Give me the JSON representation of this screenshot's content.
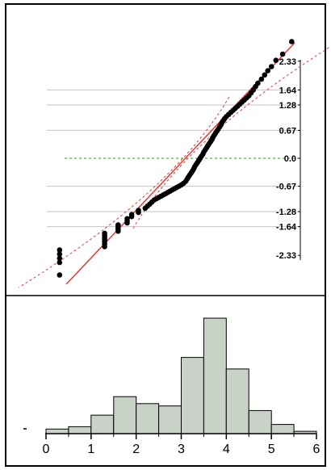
{
  "chart_data": [
    {
      "type": "scatter",
      "subtype": "normal-quantile-plot",
      "title": "",
      "xlabel": "",
      "ylabel": "",
      "right_axis_ticks": [
        2.33,
        1.64,
        1.28,
        0.67,
        0.0,
        -0.67,
        -1.28,
        -1.64,
        -2.33
      ],
      "right_axis_labels": [
        "2.33",
        "1.64",
        "1.28",
        "0.67",
        "0.0",
        "-0.67",
        "-1.28",
        "-1.64",
        "-2.33"
      ],
      "zero_line_color": "#2e9d2e",
      "fit_line_color": "#e53935",
      "confidence_band_color": "#e53935",
      "point_color": "#000000",
      "grid": true,
      "x": [
        0.3,
        0.3,
        0.3,
        0.3,
        0.3,
        1.3,
        1.3,
        1.3,
        1.3,
        1.3,
        1.3,
        1.3,
        1.6,
        1.6,
        1.6,
        1.6,
        1.8,
        1.8,
        1.8,
        1.9,
        1.9,
        2.05,
        2.05,
        2.2,
        2.25,
        2.3,
        2.35,
        2.4,
        2.45,
        2.5,
        2.55,
        2.6,
        2.65,
        2.7,
        2.75,
        2.8,
        2.85,
        2.9,
        2.95,
        3.0,
        3.05,
        3.1,
        3.13,
        3.16,
        3.19,
        3.22,
        3.25,
        3.28,
        3.3,
        3.33,
        3.36,
        3.39,
        3.42,
        3.45,
        3.48,
        3.5,
        3.53,
        3.56,
        3.59,
        3.62,
        3.65,
        3.68,
        3.7,
        3.73,
        3.76,
        3.79,
        3.82,
        3.85,
        3.88,
        3.9,
        3.93,
        3.96,
        4.0,
        4.05,
        4.1,
        4.15,
        4.2,
        4.25,
        4.3,
        4.35,
        4.4,
        4.45,
        4.5,
        4.55,
        4.6,
        4.65,
        4.7,
        4.78,
        4.85,
        4.92,
        5.0,
        5.1,
        5.25,
        5.45
      ],
      "y": [
        -2.8,
        -2.5,
        -2.4,
        -2.3,
        -2.2,
        -2.12,
        -2.06,
        -2.0,
        -1.95,
        -1.9,
        -1.85,
        -1.8,
        -1.75,
        -1.7,
        -1.65,
        -1.6,
        -1.55,
        -1.5,
        -1.45,
        -1.4,
        -1.35,
        -1.3,
        -1.25,
        -1.2,
        -1.15,
        -1.1,
        -1.05,
        -1.0,
        -0.97,
        -0.94,
        -0.91,
        -0.88,
        -0.85,
        -0.82,
        -0.79,
        -0.76,
        -0.73,
        -0.7,
        -0.67,
        -0.64,
        -0.6,
        -0.55,
        -0.5,
        -0.45,
        -0.4,
        -0.35,
        -0.3,
        -0.25,
        -0.2,
        -0.15,
        -0.1,
        -0.05,
        0.0,
        0.05,
        0.1,
        0.15,
        0.2,
        0.25,
        0.3,
        0.35,
        0.4,
        0.45,
        0.5,
        0.55,
        0.6,
        0.65,
        0.7,
        0.75,
        0.8,
        0.85,
        0.9,
        0.95,
        1.0,
        1.05,
        1.1,
        1.15,
        1.2,
        1.25,
        1.3,
        1.35,
        1.4,
        1.45,
        1.5,
        1.57,
        1.64,
        1.72,
        1.8,
        1.9,
        2.0,
        2.1,
        2.2,
        2.35,
        2.5,
        2.8
      ],
      "yrange": [
        -3.1,
        3.3
      ],
      "xlim": [
        0,
        6
      ]
    },
    {
      "type": "bar",
      "subtype": "histogram",
      "title": "",
      "xlabel": "",
      "ylabel": "",
      "bin_edges": [
        0,
        0.5,
        1.0,
        1.5,
        2.0,
        2.5,
        3.0,
        3.5,
        4.0,
        4.5,
        5.0,
        5.5,
        6.0
      ],
      "values": [
        2,
        3,
        8,
        16,
        13,
        12,
        33,
        50,
        28,
        10,
        4,
        1
      ],
      "ylim": [
        0,
        55
      ],
      "x_ticks": [
        "0",
        "1",
        "2",
        "3",
        "4",
        "5",
        "6"
      ],
      "bar_fill": "#c8d2c6",
      "bar_stroke": "#000000"
    }
  ]
}
